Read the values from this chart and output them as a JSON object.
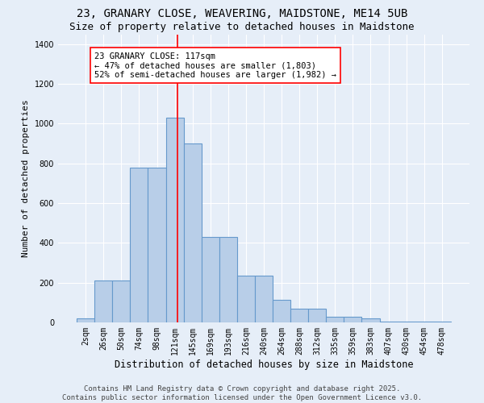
{
  "title_line1": "23, GRANARY CLOSE, WEAVERING, MAIDSTONE, ME14 5UB",
  "title_line2": "Size of property relative to detached houses in Maidstone",
  "xlabel": "Distribution of detached houses by size in Maidstone",
  "ylabel": "Number of detached properties",
  "categories": [
    "2sqm",
    "26sqm",
    "50sqm",
    "74sqm",
    "98sqm",
    "121sqm",
    "145sqm",
    "169sqm",
    "193sqm",
    "216sqm",
    "240sqm",
    "264sqm",
    "288sqm",
    "312sqm",
    "335sqm",
    "359sqm",
    "383sqm",
    "407sqm",
    "430sqm",
    "454sqm",
    "478sqm"
  ],
  "values": [
    20,
    210,
    210,
    780,
    780,
    1030,
    900,
    430,
    430,
    235,
    235,
    115,
    70,
    70,
    30,
    30,
    20,
    5,
    5,
    5,
    5
  ],
  "bar_color": "#b8cee8",
  "bar_edge_color": "#6699cc",
  "vline_x": 5.15,
  "vline_color": "red",
  "annotation_text": "23 GRANARY CLOSE: 117sqm\n← 47% of detached houses are smaller (1,803)\n52% of semi-detached houses are larger (1,982) →",
  "annotation_box_color": "white",
  "annotation_box_edge_color": "red",
  "ylim": [
    0,
    1450
  ],
  "yticks": [
    0,
    200,
    400,
    600,
    800,
    1000,
    1200,
    1400
  ],
  "background_color": "#e6eef8",
  "footnote": "Contains HM Land Registry data © Crown copyright and database right 2025.\nContains public sector information licensed under the Open Government Licence v3.0.",
  "title_fontsize": 10,
  "subtitle_fontsize": 9,
  "tick_fontsize": 7,
  "ylabel_fontsize": 8,
  "xlabel_fontsize": 8.5,
  "footnote_fontsize": 6.5,
  "annotation_fontsize": 7.5
}
